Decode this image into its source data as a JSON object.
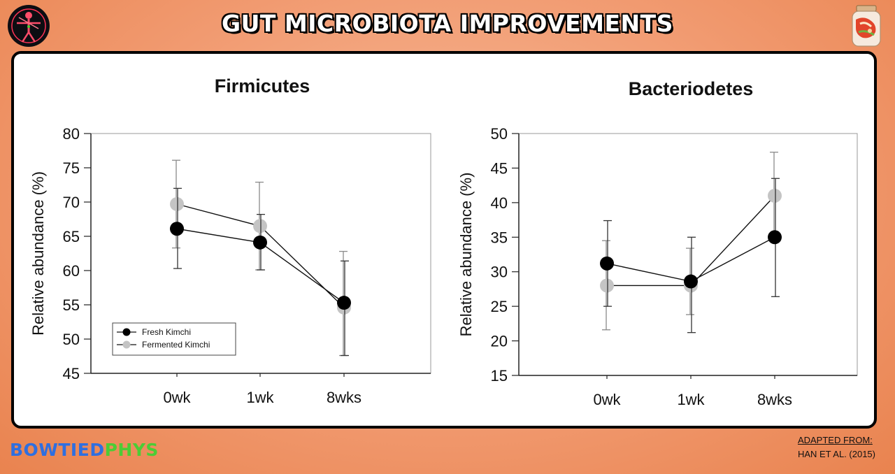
{
  "header": {
    "title": "GUT MICROBIOTA IMPROVEMENTS",
    "left_logo_icon": "vitruvian-body-icon",
    "right_logo_icon": "kimchi-jar-icon"
  },
  "footer": {
    "brand_part1": "BOWTIED",
    "brand_part2": "PHYS",
    "source_label": "ADAPTED FROM:",
    "source_citation": "HAN ET AL. (2015)"
  },
  "colors": {
    "fresh": "#000000",
    "fermented": "#c4c4c4",
    "background": "#f19a70",
    "brand_blue": "#2f6fe0",
    "brand_green": "#4ccc35"
  },
  "chart_data": [
    {
      "type": "line",
      "title": "Firmicutes",
      "ylabel": "Relative abundance (%)",
      "xlabel": "",
      "categories": [
        "0wk",
        "1wk",
        "8wks"
      ],
      "ylim": [
        45,
        80
      ],
      "yticks": [
        45,
        50,
        55,
        60,
        65,
        70,
        75,
        80
      ],
      "legend": {
        "position": "bottom-left",
        "entries": [
          "Fresh Kimchi",
          "Fermented Kimchi"
        ]
      },
      "series": [
        {
          "name": "Fresh Kimchi",
          "color": "#000000",
          "values": [
            66.1,
            64.1,
            55.3
          ],
          "err_low": [
            60.3,
            60.1,
            47.6
          ],
          "err_high": [
            72.0,
            68.2,
            61.4
          ]
        },
        {
          "name": "Fermented Kimchi",
          "color": "#c4c4c4",
          "values": [
            69.7,
            66.5,
            54.6
          ],
          "err_low": [
            63.3,
            60.1,
            47.6
          ],
          "err_high": [
            76.1,
            72.9,
            62.8
          ]
        }
      ]
    },
    {
      "type": "line",
      "title": "Bacteriodetes",
      "ylabel": "Relative abundance (%)",
      "xlabel": "",
      "categories": [
        "0wk",
        "1wk",
        "8wks"
      ],
      "ylim": [
        15,
        50
      ],
      "yticks": [
        15,
        20,
        25,
        30,
        35,
        40,
        45,
        50
      ],
      "series": [
        {
          "name": "Fresh Kimchi",
          "color": "#000000",
          "values": [
            31.2,
            28.6,
            35.0
          ],
          "err_low": [
            25.0,
            21.2,
            26.4
          ],
          "err_high": [
            37.4,
            35.0,
            43.5
          ]
        },
        {
          "name": "Fermented Kimchi",
          "color": "#c4c4c4",
          "values": [
            28.0,
            28.0,
            41.0
          ],
          "err_low": [
            21.6,
            23.8,
            34.6
          ],
          "err_high": [
            34.5,
            33.4,
            47.3
          ]
        }
      ]
    }
  ]
}
